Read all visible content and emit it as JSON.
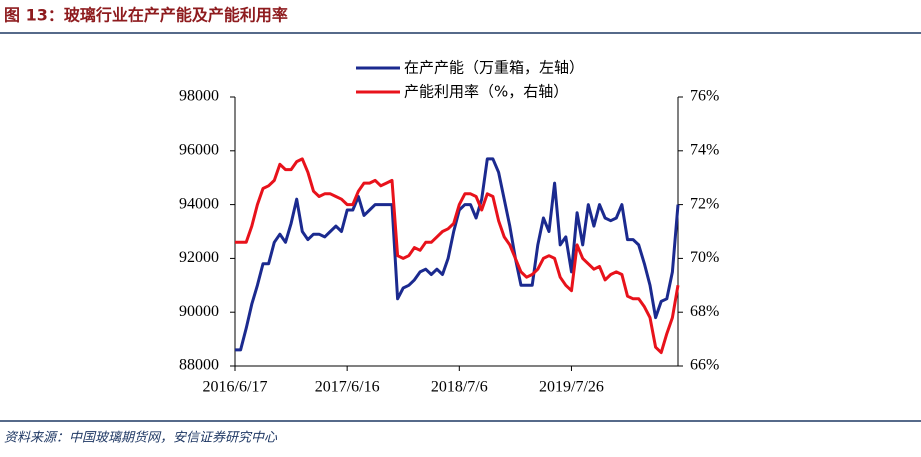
{
  "chart_data": {
    "type": "line",
    "title": "图 13：玻璃行业在产产能及产能利用率",
    "source": "资料来源：中国玻璃期货网，安信证券研究中心",
    "categories": [
      "2016/6/17",
      null,
      null,
      null,
      null,
      null,
      null,
      null,
      null,
      null,
      null,
      null,
      null,
      null,
      null,
      null,
      null,
      null,
      null,
      null,
      "2017/6/16",
      null,
      null,
      null,
      null,
      null,
      null,
      null,
      null,
      null,
      null,
      null,
      null,
      null,
      null,
      null,
      null,
      null,
      null,
      null,
      "2018/7/6",
      null,
      null,
      null,
      null,
      null,
      null,
      null,
      null,
      null,
      null,
      null,
      null,
      null,
      null,
      null,
      null,
      null,
      null,
      null,
      "2019/7/26",
      null,
      null,
      null,
      null,
      null,
      null,
      null,
      null,
      null,
      null,
      null,
      null,
      null,
      null,
      null,
      null,
      null,
      null,
      null
    ],
    "series": [
      {
        "name": "在产产能（万重箱，左轴）",
        "color": "#1b2a8f",
        "axis": "y",
        "values": [
          88600,
          88600,
          89400,
          90300,
          91000,
          91800,
          91800,
          92600,
          92900,
          92600,
          93300,
          94200,
          93000,
          92700,
          92900,
          92900,
          92800,
          93000,
          93200,
          93000,
          93800,
          93800,
          94300,
          93600,
          93800,
          94000,
          94000,
          94000,
          94000,
          90500,
          90900,
          91000,
          91200,
          91500,
          91600,
          91400,
          91600,
          91400,
          92000,
          93000,
          93800,
          94000,
          94000,
          93500,
          94200,
          95700,
          95700,
          95200,
          94200,
          93200,
          92000,
          91000,
          91000,
          91000,
          92500,
          93500,
          93000,
          94800,
          92500,
          92800,
          91500,
          93700,
          92500,
          94000,
          93200,
          94000,
          93500,
          93400,
          93500,
          94000,
          92700,
          92700,
          92500,
          91800,
          91000,
          89800,
          90400,
          90500,
          91500,
          94000
        ]
      },
      {
        "name": "产能利用率（%，右轴）",
        "color": "#e8121b",
        "axis": "y2",
        "values": [
          70.6,
          70.6,
          70.6,
          71.2,
          72.0,
          72.6,
          72.7,
          72.9,
          73.5,
          73.3,
          73.3,
          73.6,
          73.7,
          73.2,
          72.5,
          72.3,
          72.4,
          72.4,
          72.3,
          72.2,
          72.0,
          72.0,
          72.5,
          72.8,
          72.8,
          72.9,
          72.7,
          72.8,
          72.9,
          70.1,
          70.0,
          70.1,
          70.4,
          70.3,
          70.6,
          70.6,
          70.8,
          71.0,
          71.1,
          71.3,
          72.0,
          72.4,
          72.4,
          72.3,
          71.8,
          72.4,
          72.3,
          71.4,
          70.8,
          70.5,
          70.0,
          69.5,
          69.3,
          69.4,
          69.6,
          70.0,
          70.1,
          70.0,
          69.3,
          69.0,
          68.8,
          70.5,
          70.0,
          69.8,
          69.6,
          69.7,
          69.2,
          69.4,
          69.5,
          69.4,
          68.6,
          68.5,
          68.5,
          68.2,
          67.8,
          66.7,
          66.5,
          67.2,
          67.8,
          69.0
        ]
      }
    ],
    "ylim": [
      88000,
      98000
    ],
    "yticks": [
      88000,
      90000,
      92000,
      94000,
      96000,
      98000
    ],
    "y2lim": [
      66,
      76
    ],
    "y2ticks": [
      {
        "value": 66,
        "label": "66%"
      },
      {
        "value": 68,
        "label": "68%"
      },
      {
        "value": 70,
        "label": "70%"
      },
      {
        "value": 72,
        "label": "72%"
      },
      {
        "value": 74,
        "label": "74%"
      },
      {
        "value": 76,
        "label": "76%"
      }
    ],
    "grid": false
  }
}
